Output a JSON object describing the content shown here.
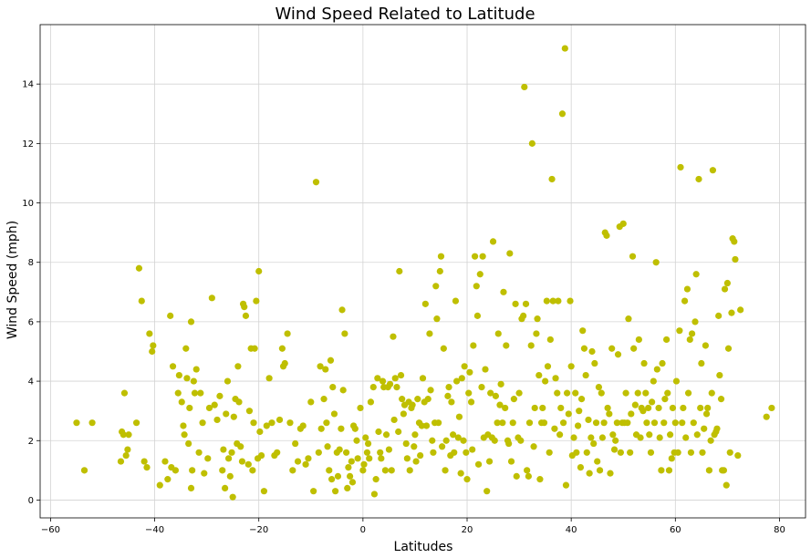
{
  "chart_data": {
    "type": "scatter",
    "title": "Wind Speed Related to Latitude",
    "xlabel": "Latitudes",
    "ylabel": "Wind Speed (mph)",
    "xlim": [
      -62,
      85
    ],
    "ylim": [
      -0.6,
      16
    ],
    "xticks": [
      -60,
      -40,
      -20,
      0,
      20,
      40,
      60,
      80
    ],
    "yticks": [
      0,
      2,
      4,
      6,
      8,
      10,
      12,
      14
    ],
    "xtick_labels": [
      "−60",
      "−40",
      "−20",
      "0",
      "20",
      "40",
      "60",
      "80"
    ],
    "ytick_labels": [
      "0",
      "2",
      "4",
      "6",
      "8",
      "10",
      "12",
      "14"
    ],
    "grid": true,
    "point_color": "#bfbf00",
    "grid_color": "#d3d3d3",
    "points": [
      [
        -55,
        2.6
      ],
      [
        -53.5,
        1.0
      ],
      [
        -52,
        2.6
      ],
      [
        -46.5,
        1.3
      ],
      [
        -46.3,
        2.3
      ],
      [
        -46,
        2.2
      ],
      [
        -45.8,
        3.6
      ],
      [
        -45.5,
        1.5
      ],
      [
        -45.2,
        1.7
      ],
      [
        -45,
        2.2
      ],
      [
        -43.5,
        2.6
      ],
      [
        -43,
        7.8
      ],
      [
        -42.5,
        6.7
      ],
      [
        -42,
        1.3
      ],
      [
        -41.5,
        1.1
      ],
      [
        -41,
        5.6
      ],
      [
        -40.5,
        5.0
      ],
      [
        -40.3,
        5.2
      ],
      [
        -39,
        0.5
      ],
      [
        -38,
        1.3
      ],
      [
        -37.5,
        0.7
      ],
      [
        -37,
        6.2
      ],
      [
        -36.8,
        1.1
      ],
      [
        -36.5,
        4.5
      ],
      [
        -36,
        1.0
      ],
      [
        -35.5,
        3.6
      ],
      [
        -35.3,
        4.2
      ],
      [
        -34.8,
        3.3
      ],
      [
        -34.5,
        2.5
      ],
      [
        -34.3,
        2.2
      ],
      [
        -34,
        5.1
      ],
      [
        -33.8,
        4.1
      ],
      [
        -33.5,
        1.9
      ],
      [
        -33.3,
        3.1
      ],
      [
        -33,
        0.4
      ],
      [
        -33,
        6.0
      ],
      [
        -32.8,
        1.0
      ],
      [
        -32.5,
        4.0
      ],
      [
        -32.3,
        3.6
      ],
      [
        -32,
        4.4
      ],
      [
        -31.5,
        1.6
      ],
      [
        -31.2,
        3.6
      ],
      [
        -30.8,
        2.6
      ],
      [
        -30.5,
        0.9
      ],
      [
        -29.8,
        1.4
      ],
      [
        -29.5,
        3.1
      ],
      [
        -29,
        6.8
      ],
      [
        -28.5,
        3.2
      ],
      [
        -28,
        2.7
      ],
      [
        -27.5,
        3.5
      ],
      [
        -27,
        1.0
      ],
      [
        -26.8,
        1.7
      ],
      [
        -26.5,
        0.4
      ],
      [
        -26.3,
        2.9
      ],
      [
        -26,
        4.0
      ],
      [
        -25.8,
        1.4
      ],
      [
        -25.5,
        0.8
      ],
      [
        -25.2,
        1.6
      ],
      [
        -25,
        0.1
      ],
      [
        -24.8,
        2.8
      ],
      [
        -24.5,
        3.4
      ],
      [
        -24.2,
        1.9
      ],
      [
        -24,
        4.5
      ],
      [
        -23.8,
        3.3
      ],
      [
        -23.5,
        1.8
      ],
      [
        -23.2,
        1.3
      ],
      [
        -23,
        6.6
      ],
      [
        -22.8,
        6.5
      ],
      [
        -22.5,
        6.2
      ],
      [
        -22,
        1.2
      ],
      [
        -21.8,
        3.0
      ],
      [
        -21.5,
        5.1
      ],
      [
        -21.2,
        1.0
      ],
      [
        -21,
        2.6
      ],
      [
        -20.8,
        5.1
      ],
      [
        -20.5,
        6.7
      ],
      [
        -20.2,
        1.4
      ],
      [
        -20,
        7.7
      ],
      [
        -19.8,
        2.3
      ],
      [
        -19.5,
        1.5
      ],
      [
        -19,
        0.3
      ],
      [
        -18.5,
        2.5
      ],
      [
        -18,
        4.1
      ],
      [
        -17.5,
        2.6
      ],
      [
        -17,
        1.5
      ],
      [
        -16.5,
        1.6
      ],
      [
        -16,
        2.7
      ],
      [
        -15.5,
        5.1
      ],
      [
        -15.3,
        4.5
      ],
      [
        -15,
        4.6
      ],
      [
        -14.5,
        5.6
      ],
      [
        -14,
        2.6
      ],
      [
        -13.5,
        1.0
      ],
      [
        -13,
        1.9
      ],
      [
        -12.5,
        1.3
      ],
      [
        -12,
        2.4
      ],
      [
        -11.5,
        2.5
      ],
      [
        -11,
        1.2
      ],
      [
        -10.5,
        1.4
      ],
      [
        -10,
        3.3
      ],
      [
        -9.5,
        0.3
      ],
      [
        -9,
        10.7
      ],
      [
        -8.5,
        1.6
      ],
      [
        -8.2,
        4.5
      ],
      [
        -8,
        2.4
      ],
      [
        -7.5,
        3.4
      ],
      [
        -7.2,
        4.4
      ],
      [
        -7,
        2.6
      ],
      [
        -6.8,
        1.8
      ],
      [
        -6.5,
        1.0
      ],
      [
        -6.2,
        4.7
      ],
      [
        -6,
        0.7
      ],
      [
        -5.8,
        3.8
      ],
      [
        -5.5,
        2.9
      ],
      [
        -5.3,
        0.3
      ],
      [
        -5,
        1.6
      ],
      [
        -4.8,
        0.8
      ],
      [
        -4.5,
        1.7
      ],
      [
        -4.2,
        2.4
      ],
      [
        -4,
        6.4
      ],
      [
        -3.8,
        3.7
      ],
      [
        -3.5,
        5.6
      ],
      [
        -3.2,
        1.6
      ],
      [
        -3,
        0.4
      ],
      [
        -2.8,
        1.1
      ],
      [
        -2.5,
        0.8
      ],
      [
        -2.2,
        1.3
      ],
      [
        -2,
        0.6
      ],
      [
        -1.8,
        2.5
      ],
      [
        -1.5,
        2.4
      ],
      [
        -1.2,
        2.0
      ],
      [
        -1,
        1.4
      ],
      [
        -0.5,
        3.1
      ],
      [
        0,
        1.0
      ],
      [
        0.2,
        1.2
      ],
      [
        0.5,
        2.1
      ],
      [
        0.8,
        1.6
      ],
      [
        1,
        1.9
      ],
      [
        1.2,
        1.4
      ],
      [
        1.5,
        3.3
      ],
      [
        2,
        3.8
      ],
      [
        2.2,
        0.2
      ],
      [
        2.5,
        0.7
      ],
      [
        2.8,
        4.1
      ],
      [
        3,
        2.3
      ],
      [
        3.3,
        1.6
      ],
      [
        3.5,
        1.4
      ],
      [
        3.8,
        4.0
      ],
      [
        4,
        3.8
      ],
      [
        4.3,
        1.0
      ],
      [
        4.5,
        2.2
      ],
      [
        4.8,
        3.8
      ],
      [
        5,
        1.7
      ],
      [
        5.2,
        3.9
      ],
      [
        5.5,
        1.0
      ],
      [
        5.8,
        5.5
      ],
      [
        6,
        2.7
      ],
      [
        6.2,
        4.1
      ],
      [
        6.5,
        3.8
      ],
      [
        6.8,
        2.3
      ],
      [
        7,
        7.7
      ],
      [
        7.3,
        4.2
      ],
      [
        7.5,
        3.4
      ],
      [
        7.8,
        2.9
      ],
      [
        8,
        3.2
      ],
      [
        8.3,
        1.9
      ],
      [
        8.5,
        1.4
      ],
      [
        8.8,
        3.3
      ],
      [
        9,
        1.0
      ],
      [
        9.3,
        3.1
      ],
      [
        9.5,
        3.2
      ],
      [
        9.8,
        1.8
      ],
      [
        10,
        2.2
      ],
      [
        10.2,
        1.3
      ],
      [
        10.5,
        3.4
      ],
      [
        10.8,
        2.6
      ],
      [
        11,
        1.5
      ],
      [
        11.3,
        2.5
      ],
      [
        11.5,
        4.1
      ],
      [
        11.8,
        3.3
      ],
      [
        12,
        6.6
      ],
      [
        12.2,
        2.5
      ],
      [
        12.5,
        3.4
      ],
      [
        12.8,
        5.6
      ],
      [
        13,
        3.7
      ],
      [
        13.3,
        2.0
      ],
      [
        13.5,
        1.6
      ],
      [
        13.8,
        2.6
      ],
      [
        14,
        7.2
      ],
      [
        14.2,
        6.1
      ],
      [
        14.5,
        2.6
      ],
      [
        14.8,
        7.7
      ],
      [
        15,
        8.2
      ],
      [
        15.2,
        1.8
      ],
      [
        15.5,
        5.1
      ],
      [
        15.8,
        1.0
      ],
      [
        16,
        2.0
      ],
      [
        16.3,
        3.5
      ],
      [
        16.5,
        3.8
      ],
      [
        16.8,
        1.5
      ],
      [
        17,
        3.3
      ],
      [
        17.3,
        2.2
      ],
      [
        17.5,
        1.6
      ],
      [
        17.8,
        6.7
      ],
      [
        18,
        4.0
      ],
      [
        18.3,
        2.1
      ],
      [
        18.5,
        2.8
      ],
      [
        18.8,
        0.9
      ],
      [
        19,
        4.1
      ],
      [
        19.3,
        2.0
      ],
      [
        19.5,
        4.5
      ],
      [
        19.8,
        1.6
      ],
      [
        20,
        0.7
      ],
      [
        20.3,
        3.6
      ],
      [
        20.5,
        4.3
      ],
      [
        20.8,
        3.3
      ],
      [
        21,
        1.7
      ],
      [
        21.2,
        5.2
      ],
      [
        21.5,
        8.2
      ],
      [
        21.8,
        7.2
      ],
      [
        22,
        6.2
      ],
      [
        22.2,
        1.2
      ],
      [
        22.5,
        7.6
      ],
      [
        22.8,
        3.8
      ],
      [
        23,
        8.2
      ],
      [
        23.2,
        2.1
      ],
      [
        23.5,
        4.4
      ],
      [
        23.8,
        0.3
      ],
      [
        24,
        2.2
      ],
      [
        24.3,
        1.3
      ],
      [
        24.5,
        3.6
      ],
      [
        24.8,
        2.1
      ],
      [
        25,
        8.7
      ],
      [
        25.3,
        2.0
      ],
      [
        25.5,
        3.5
      ],
      [
        25.8,
        2.6
      ],
      [
        26,
        5.6
      ],
      [
        26.3,
        3.2
      ],
      [
        26.5,
        3.9
      ],
      [
        26.8,
        2.6
      ],
      [
        27,
        7.0
      ],
      [
        27.3,
        3.1
      ],
      [
        27.5,
        5.2
      ],
      [
        27.8,
        2.0
      ],
      [
        28,
        1.9
      ],
      [
        28.2,
        8.3
      ],
      [
        28.5,
        1.3
      ],
      [
        28.8,
        2.6
      ],
      [
        29,
        3.4
      ],
      [
        29.3,
        6.6
      ],
      [
        29.5,
        0.8
      ],
      [
        29.8,
        2.1
      ],
      [
        30,
        3.6
      ],
      [
        30.3,
        2.0
      ],
      [
        30.5,
        6.1
      ],
      [
        30.8,
        6.2
      ],
      [
        31,
        13.9
      ],
      [
        31.3,
        6.6
      ],
      [
        31.5,
        1.0
      ],
      [
        31.8,
        0.8
      ],
      [
        32,
        2.6
      ],
      [
        32.3,
        5.2
      ],
      [
        32.5,
        12.0
      ],
      [
        32.8,
        1.8
      ],
      [
        33,
        3.1
      ],
      [
        33.3,
        5.6
      ],
      [
        33.5,
        6.1
      ],
      [
        33.8,
        4.2
      ],
      [
        34,
        0.7
      ],
      [
        34.3,
        2.6
      ],
      [
        34.5,
        3.1
      ],
      [
        34.8,
        2.6
      ],
      [
        35,
        4.0
      ],
      [
        35.3,
        6.7
      ],
      [
        35.5,
        4.5
      ],
      [
        35.8,
        1.6
      ],
      [
        36,
        5.4
      ],
      [
        36.3,
        10.8
      ],
      [
        36.5,
        6.7
      ],
      [
        36.8,
        2.4
      ],
      [
        37,
        4.1
      ],
      [
        37.3,
        3.6
      ],
      [
        37.5,
        6.7
      ],
      [
        37.8,
        2.2
      ],
      [
        38,
        3.1
      ],
      [
        38.3,
        13.0
      ],
      [
        38.5,
        2.6
      ],
      [
        38.8,
        15.2
      ],
      [
        39,
        0.5
      ],
      [
        39.2,
        3.6
      ],
      [
        39.5,
        2.9
      ],
      [
        39.8,
        6.7
      ],
      [
        40,
        4.5
      ],
      [
        40.2,
        1.5
      ],
      [
        40.5,
        2.1
      ],
      [
        40.8,
        3.6
      ],
      [
        41,
        1.6
      ],
      [
        41.3,
        2.5
      ],
      [
        41.5,
        3.0
      ],
      [
        41.8,
        1.1
      ],
      [
        42,
        3.4
      ],
      [
        42.2,
        5.7
      ],
      [
        42.5,
        5.1
      ],
      [
        42.8,
        4.2
      ],
      [
        43,
        1.6
      ],
      [
        43.3,
        2.7
      ],
      [
        43.5,
        0.9
      ],
      [
        43.8,
        2.1
      ],
      [
        44,
        5.0
      ],
      [
        44.3,
        1.9
      ],
      [
        44.5,
        4.6
      ],
      [
        44.8,
        2.6
      ],
      [
        45,
        1.3
      ],
      [
        45.3,
        3.8
      ],
      [
        45.5,
        1.0
      ],
      [
        45.8,
        3.6
      ],
      [
        46,
        2.1
      ],
      [
        46.3,
        2.6
      ],
      [
        46.5,
        9.0
      ],
      [
        46.8,
        8.9
      ],
      [
        47,
        3.1
      ],
      [
        47.3,
        2.9
      ],
      [
        47.5,
        0.9
      ],
      [
        47.8,
        5.1
      ],
      [
        48,
        2.2
      ],
      [
        48.3,
        1.7
      ],
      [
        48.5,
        2.0
      ],
      [
        48.8,
        2.6
      ],
      [
        49,
        4.9
      ],
      [
        49.3,
        9.2
      ],
      [
        49.5,
        1.6
      ],
      [
        49.8,
        2.6
      ],
      [
        50,
        9.3
      ],
      [
        50.2,
        2.6
      ],
      [
        50.5,
        3.6
      ],
      [
        50.8,
        2.6
      ],
      [
        51,
        6.1
      ],
      [
        51.3,
        1.6
      ],
      [
        51.5,
        2.9
      ],
      [
        51.8,
        8.2
      ],
      [
        52,
        5.1
      ],
      [
        52.3,
        3.2
      ],
      [
        52.5,
        2.2
      ],
      [
        52.8,
        3.6
      ],
      [
        53,
        5.4
      ],
      [
        53.3,
        2.1
      ],
      [
        53.5,
        3.1
      ],
      [
        53.8,
        3.0
      ],
      [
        54,
        4.6
      ],
      [
        54.3,
        3.6
      ],
      [
        54.5,
        2.6
      ],
      [
        54.8,
        3.1
      ],
      [
        55,
        2.2
      ],
      [
        55.3,
        1.6
      ],
      [
        55.5,
        3.3
      ],
      [
        55.8,
        4.0
      ],
      [
        56,
        2.6
      ],
      [
        56.3,
        8.0
      ],
      [
        56.5,
        4.4
      ],
      [
        56.8,
        3.1
      ],
      [
        57,
        2.1
      ],
      [
        57.3,
        1.0
      ],
      [
        57.5,
        4.6
      ],
      [
        57.8,
        2.6
      ],
      [
        58,
        3.4
      ],
      [
        58.3,
        5.4
      ],
      [
        58.5,
        3.6
      ],
      [
        58.8,
        1.0
      ],
      [
        59,
        2.2
      ],
      [
        59.3,
        1.4
      ],
      [
        59.5,
        3.1
      ],
      [
        59.8,
        1.6
      ],
      [
        60,
        2.6
      ],
      [
        60.2,
        4.0
      ],
      [
        60.5,
        1.6
      ],
      [
        60.8,
        5.7
      ],
      [
        61,
        11.2
      ],
      [
        61.3,
        2.6
      ],
      [
        61.5,
        3.1
      ],
      [
        61.8,
        6.7
      ],
      [
        62,
        2.1
      ],
      [
        62.3,
        7.1
      ],
      [
        62.5,
        3.6
      ],
      [
        62.8,
        5.4
      ],
      [
        63,
        1.6
      ],
      [
        63.2,
        5.6
      ],
      [
        63.5,
        2.6
      ],
      [
        63.8,
        6.0
      ],
      [
        64,
        7.6
      ],
      [
        64.2,
        2.2
      ],
      [
        64.5,
        10.8
      ],
      [
        64.8,
        3.1
      ],
      [
        65,
        4.6
      ],
      [
        65.2,
        1.6
      ],
      [
        65.5,
        2.4
      ],
      [
        65.8,
        5.2
      ],
      [
        66,
        2.9
      ],
      [
        66.2,
        3.1
      ],
      [
        66.5,
        1.0
      ],
      [
        66.8,
        2.0
      ],
      [
        67,
        3.6
      ],
      [
        67.2,
        11.1
      ],
      [
        67.5,
        2.2
      ],
      [
        67.8,
        2.3
      ],
      [
        68,
        2.4
      ],
      [
        68.3,
        6.2
      ],
      [
        68.5,
        4.2
      ],
      [
        68.8,
        3.4
      ],
      [
        69,
        1.0
      ],
      [
        69.3,
        1.0
      ],
      [
        69.5,
        7.1
      ],
      [
        69.8,
        0.5
      ],
      [
        70,
        7.3
      ],
      [
        70.2,
        5.1
      ],
      [
        70.5,
        1.6
      ],
      [
        70.8,
        6.3
      ],
      [
        71,
        8.8
      ],
      [
        71.3,
        8.7
      ],
      [
        71.5,
        8.1
      ],
      [
        72,
        1.5
      ],
      [
        72.5,
        6.4
      ],
      [
        77.5,
        2.8
      ],
      [
        78.5,
        3.1
      ]
    ]
  }
}
